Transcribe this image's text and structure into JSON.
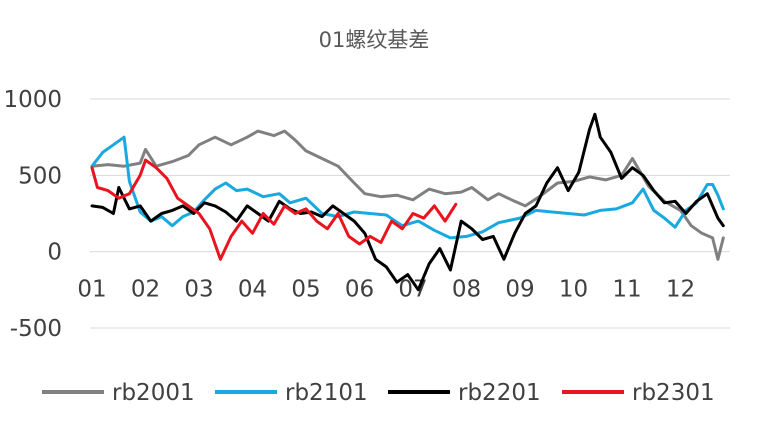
{
  "chart_data": {
    "type": "line",
    "title": "01螺纹基差",
    "xlabel": "",
    "ylabel": "",
    "x_ticks": [
      "01",
      "02",
      "03",
      "04",
      "05",
      "06",
      "07",
      "08",
      "09",
      "10",
      "11",
      "12"
    ],
    "y_ticks": [
      "1000",
      "500",
      "0",
      "-500"
    ],
    "ylim": [
      -500,
      1000
    ],
    "xlim": [
      1,
      12.9
    ],
    "grid": "horizontal",
    "legend_position": "bottom",
    "series": [
      {
        "name": "rb2001",
        "color": "#808080",
        "x": [
          1.0,
          1.3,
          1.6,
          1.9,
          2.0,
          2.2,
          2.5,
          2.8,
          3.0,
          3.3,
          3.6,
          3.9,
          4.1,
          4.4,
          4.6,
          4.8,
          5.0,
          5.3,
          5.6,
          5.9,
          6.1,
          6.4,
          6.7,
          7.0,
          7.3,
          7.6,
          7.9,
          8.1,
          8.4,
          8.6,
          8.9,
          9.1,
          9.4,
          9.7,
          10.0,
          10.3,
          10.6,
          10.9,
          11.1,
          11.4,
          11.7,
          12.0,
          12.2,
          12.4,
          12.6,
          12.7,
          12.8
        ],
        "values": [
          560,
          570,
          560,
          580,
          670,
          560,
          590,
          630,
          700,
          750,
          700,
          750,
          790,
          760,
          790,
          730,
          660,
          610,
          560,
          450,
          380,
          360,
          370,
          340,
          410,
          380,
          390,
          420,
          340,
          380,
          330,
          300,
          370,
          450,
          460,
          490,
          470,
          500,
          610,
          430,
          330,
          270,
          170,
          120,
          90,
          -50,
          90
        ]
      },
      {
        "name": "rb2101",
        "color": "#1aa8e0",
        "x": [
          1.0,
          1.2,
          1.4,
          1.6,
          1.7,
          1.9,
          2.1,
          2.3,
          2.5,
          2.7,
          2.9,
          3.1,
          3.3,
          3.5,
          3.7,
          3.9,
          4.2,
          4.5,
          4.7,
          5.0,
          5.3,
          5.6,
          5.9,
          6.2,
          6.5,
          6.8,
          7.1,
          7.4,
          7.7,
          8.0,
          8.3,
          8.6,
          9.0,
          9.3,
          9.6,
          9.9,
          10.2,
          10.5,
          10.8,
          11.1,
          11.3,
          11.5,
          11.7,
          11.9,
          12.1,
          12.3,
          12.5,
          12.6,
          12.7,
          12.8
        ],
        "values": [
          560,
          650,
          700,
          750,
          460,
          260,
          200,
          230,
          170,
          230,
          260,
          340,
          410,
          450,
          400,
          410,
          360,
          380,
          320,
          350,
          250,
          230,
          260,
          250,
          240,
          170,
          200,
          140,
          90,
          100,
          130,
          190,
          220,
          270,
          260,
          250,
          240,
          270,
          280,
          320,
          410,
          270,
          220,
          160,
          270,
          320,
          440,
          440,
          370,
          280
        ]
      },
      {
        "name": "rb2201",
        "color": "#000000",
        "x": [
          1.0,
          1.2,
          1.4,
          1.5,
          1.7,
          1.9,
          2.1,
          2.3,
          2.5,
          2.7,
          2.9,
          3.1,
          3.3,
          3.5,
          3.7,
          3.9,
          4.1,
          4.3,
          4.5,
          4.7,
          4.9,
          5.1,
          5.3,
          5.5,
          5.7,
          5.9,
          6.1,
          6.3,
          6.5,
          6.7,
          6.9,
          7.1,
          7.3,
          7.5,
          7.7,
          7.9,
          8.1,
          8.3,
          8.5,
          8.7,
          8.9,
          9.1,
          9.3,
          9.5,
          9.7,
          9.9,
          10.1,
          10.3,
          10.4,
          10.5,
          10.7,
          10.9,
          11.1,
          11.3,
          11.5,
          11.7,
          11.9,
          12.1,
          12.3,
          12.5,
          12.7,
          12.8
        ],
        "values": [
          300,
          290,
          250,
          420,
          280,
          300,
          200,
          250,
          270,
          300,
          250,
          320,
          300,
          260,
          200,
          300,
          250,
          200,
          330,
          280,
          250,
          260,
          230,
          300,
          250,
          200,
          120,
          -50,
          -100,
          -200,
          -150,
          -250,
          -80,
          20,
          -120,
          200,
          150,
          80,
          100,
          -50,
          120,
          250,
          300,
          450,
          550,
          400,
          520,
          800,
          900,
          750,
          650,
          480,
          550,
          500,
          400,
          320,
          330,
          250,
          330,
          380,
          220,
          170
        ]
      },
      {
        "name": "rb2301",
        "color": "#e8141e",
        "x": [
          1.0,
          1.1,
          1.3,
          1.5,
          1.7,
          1.9,
          2.0,
          2.2,
          2.4,
          2.6,
          2.8,
          3.0,
          3.2,
          3.4,
          3.6,
          3.8,
          4.0,
          4.2,
          4.4,
          4.6,
          4.8,
          5.0,
          5.2,
          5.4,
          5.6,
          5.8,
          6.0,
          6.2,
          6.4,
          6.6,
          6.8,
          7.0,
          7.2,
          7.4,
          7.6,
          7.8
        ],
        "values": [
          550,
          420,
          400,
          350,
          380,
          500,
          600,
          550,
          480,
          350,
          300,
          250,
          150,
          -50,
          100,
          200,
          120,
          250,
          180,
          300,
          250,
          280,
          200,
          150,
          250,
          100,
          50,
          100,
          60,
          200,
          150,
          250,
          220,
          300,
          200,
          310
        ]
      }
    ]
  }
}
